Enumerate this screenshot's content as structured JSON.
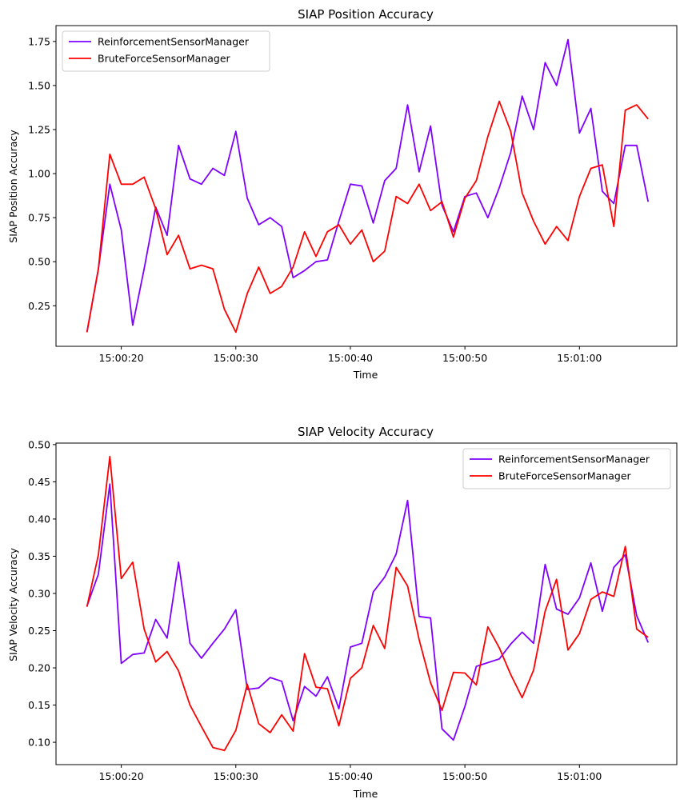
{
  "chart_data": [
    {
      "type": "line",
      "title": "SIAP Position Accuracy",
      "xlabel": "Time",
      "ylabel": "SIAP Position Accuracy",
      "x_ticks": [
        "15:00:20",
        "15:00:30",
        "15:00:40",
        "15:00:50",
        "15:01:00"
      ],
      "x_tick_seconds": [
        20,
        30,
        40,
        50,
        60
      ],
      "y_ticks": [
        "0.25",
        "0.50",
        "0.75",
        "1.00",
        "1.25",
        "1.50",
        "1.75"
      ],
      "y_tick_values": [
        0.25,
        0.5,
        0.75,
        1.0,
        1.25,
        1.5,
        1.75
      ],
      "xlim": [
        14.3,
        68.5
      ],
      "ylim": [
        0.02,
        1.84
      ],
      "legend_position": "upper-left",
      "grid": false,
      "x_seconds": [
        17,
        18,
        19,
        20,
        21,
        22,
        23,
        24,
        25,
        26,
        27,
        28,
        29,
        30,
        31,
        32,
        33,
        34,
        35,
        36,
        37,
        38,
        39,
        40,
        41,
        42,
        43,
        44,
        45,
        46,
        47,
        48,
        49,
        50,
        51,
        52,
        53,
        54,
        55,
        56,
        57,
        58,
        59,
        60,
        61,
        62,
        63,
        64,
        65,
        66
      ],
      "series": [
        {
          "name": "ReinforcementSensorManager",
          "color": "#8000ff",
          "values": [
            0.1,
            0.46,
            0.94,
            0.68,
            0.14,
            0.46,
            0.81,
            0.65,
            1.16,
            0.97,
            0.94,
            1.03,
            0.99,
            1.24,
            0.86,
            0.71,
            0.75,
            0.7,
            0.41,
            0.45,
            0.5,
            0.51,
            0.73,
            0.94,
            0.93,
            0.72,
            0.96,
            1.03,
            1.39,
            1.01,
            1.27,
            0.82,
            0.67,
            0.87,
            0.89,
            0.75,
            0.92,
            1.12,
            1.44,
            1.25,
            1.63,
            1.5,
            1.76,
            1.23,
            1.37,
            0.9,
            0.83,
            1.16,
            1.16,
            0.84
          ]
        },
        {
          "name": "BruteForceSensorManager",
          "color": "#ff0000",
          "values": [
            0.1,
            0.46,
            1.11,
            0.94,
            0.94,
            0.98,
            0.8,
            0.54,
            0.65,
            0.46,
            0.48,
            0.46,
            0.23,
            0.1,
            0.32,
            0.47,
            0.32,
            0.36,
            0.47,
            0.67,
            0.53,
            0.67,
            0.71,
            0.6,
            0.68,
            0.5,
            0.56,
            0.87,
            0.83,
            0.94,
            0.79,
            0.84,
            0.64,
            0.86,
            0.96,
            1.21,
            1.41,
            1.24,
            0.89,
            0.73,
            0.6,
            0.7,
            0.62,
            0.87,
            1.03,
            1.05,
            0.7,
            1.36,
            1.39,
            1.31
          ]
        }
      ]
    },
    {
      "type": "line",
      "title": "SIAP Velocity Accuracy",
      "xlabel": "Time",
      "ylabel": "SIAP Velocity Accuracy",
      "x_ticks": [
        "15:00:20",
        "15:00:30",
        "15:00:40",
        "15:00:50",
        "15:01:00"
      ],
      "x_tick_seconds": [
        20,
        30,
        40,
        50,
        60
      ],
      "y_ticks": [
        "0.10",
        "0.15",
        "0.20",
        "0.25",
        "0.30",
        "0.35",
        "0.40",
        "0.45",
        "0.50"
      ],
      "y_tick_values": [
        0.1,
        0.15,
        0.2,
        0.25,
        0.3,
        0.35,
        0.4,
        0.45,
        0.5
      ],
      "xlim": [
        14.3,
        68.5
      ],
      "ylim": [
        0.07,
        0.502
      ],
      "legend_position": "upper-right",
      "grid": false,
      "x_seconds": [
        17,
        18,
        19,
        20,
        21,
        22,
        23,
        24,
        25,
        26,
        27,
        28,
        29,
        30,
        31,
        32,
        33,
        34,
        35,
        36,
        37,
        38,
        39,
        40,
        41,
        42,
        43,
        44,
        45,
        46,
        47,
        48,
        49,
        50,
        51,
        52,
        53,
        54,
        55,
        56,
        57,
        58,
        59,
        60,
        61,
        62,
        63,
        64,
        65,
        66
      ],
      "series": [
        {
          "name": "ReinforcementSensorManager",
          "color": "#8000ff",
          "values": [
            0.283,
            0.326,
            0.447,
            0.206,
            0.218,
            0.22,
            0.265,
            0.24,
            0.342,
            0.233,
            0.213,
            0.233,
            0.252,
            0.278,
            0.171,
            0.173,
            0.187,
            0.182,
            0.129,
            0.175,
            0.162,
            0.188,
            0.145,
            0.228,
            0.233,
            0.302,
            0.322,
            0.353,
            0.425,
            0.269,
            0.267,
            0.118,
            0.103,
            0.148,
            0.202,
            0.207,
            0.212,
            0.232,
            0.248,
            0.233,
            0.339,
            0.279,
            0.272,
            0.294,
            0.341,
            0.276,
            0.335,
            0.352,
            0.27,
            0.234
          ]
        },
        {
          "name": "BruteForceSensorManager",
          "color": "#ff0000",
          "values": [
            0.282,
            0.352,
            0.484,
            0.32,
            0.342,
            0.252,
            0.208,
            0.222,
            0.196,
            0.15,
            0.121,
            0.093,
            0.089,
            0.116,
            0.178,
            0.125,
            0.113,
            0.137,
            0.115,
            0.219,
            0.174,
            0.172,
            0.122,
            0.186,
            0.2,
            0.257,
            0.226,
            0.335,
            0.31,
            0.238,
            0.18,
            0.143,
            0.194,
            0.193,
            0.177,
            0.255,
            0.227,
            0.191,
            0.16,
            0.197,
            0.276,
            0.319,
            0.224,
            0.246,
            0.292,
            0.302,
            0.296,
            0.363,
            0.252,
            0.241
          ]
        }
      ]
    }
  ]
}
